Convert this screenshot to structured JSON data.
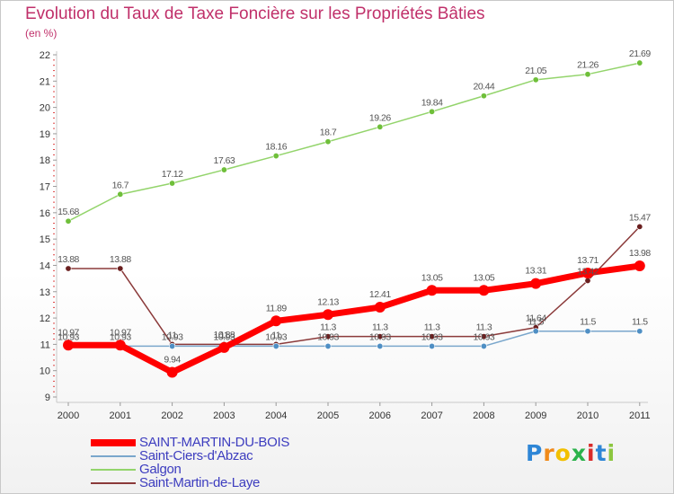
{
  "chart_data": {
    "type": "line",
    "title": "Evolution du Taux de Taxe Foncière sur les Propriétés Bâties",
    "ylabel": "(en %)",
    "xlabel": "",
    "x": [
      "2000",
      "2001",
      "2002",
      "2003",
      "2004",
      "2005",
      "2006",
      "2007",
      "2008",
      "2009",
      "2010",
      "2011"
    ],
    "yticks": [
      "9",
      "10",
      "11",
      "12",
      "13",
      "14",
      "15",
      "16",
      "17",
      "18",
      "19",
      "20",
      "21",
      "22"
    ],
    "ylim": [
      9,
      22
    ],
    "grid": false,
    "legend_position": "bottom-left",
    "series": [
      {
        "name": "Galgon",
        "color": "#93d46b",
        "marker_color": "#6fbf3a",
        "values": [
          15.68,
          16.7,
          17.12,
          17.63,
          18.16,
          18.7,
          19.26,
          19.84,
          20.44,
          21.05,
          21.26,
          21.69
        ],
        "labels": [
          "15.68",
          "16.7",
          "17.12",
          "17.63",
          "18.16",
          "18.7",
          "19.26",
          "19.84",
          "20.44",
          "21.05",
          "21.26",
          "21.69"
        ]
      },
      {
        "name": "Saint-Martin-de-Laye",
        "color": "#8b3a3a",
        "marker_color": "#6a1f1f",
        "values": [
          13.88,
          13.88,
          11.0,
          11.0,
          11.0,
          11.3,
          11.3,
          11.3,
          11.3,
          11.64,
          13.42,
          15.47
        ],
        "labels": [
          "13.88",
          "13.88",
          "11",
          "11",
          "11",
          "11.3",
          "11.3",
          "11.3",
          "11.3",
          "11.64",
          "13.42",
          "15.47"
        ]
      },
      {
        "name": "Saint-Ciers-d'Abzac",
        "color": "#7aa7cc",
        "marker_color": "#4f8fc4",
        "values": [
          10.93,
          10.93,
          10.93,
          10.93,
          10.93,
          10.93,
          10.93,
          10.93,
          10.93,
          11.5,
          11.5,
          11.5
        ],
        "labels": [
          "10.93",
          "10.93",
          "10.93",
          "10.93",
          "10.93",
          "10.93",
          "10.93",
          "10.93",
          "10.93",
          "11.5",
          "11.5",
          "11.5"
        ]
      },
      {
        "name": "SAINT-MARTIN-DU-BOIS",
        "color": "#ff0000",
        "marker_color": "#ff0000",
        "values": [
          10.97,
          10.97,
          9.94,
          10.88,
          11.89,
          12.13,
          12.41,
          13.05,
          13.05,
          13.31,
          13.71,
          13.98
        ],
        "labels": [
          "10.97",
          "10.97",
          "9.94",
          "10.88",
          "11.89",
          "12.13",
          "12.41",
          "13.05",
          "13.05",
          "13.31",
          "13.71",
          "13.98"
        ]
      }
    ],
    "legend": [
      "SAINT-MARTIN-DU-BOIS",
      "Saint-Ciers-d'Abzac",
      "Galgon",
      "Saint-Martin-de-Laye"
    ]
  },
  "brand": {
    "letters": [
      "P",
      "r",
      "o",
      "x",
      "i",
      "t",
      "i"
    ],
    "colors": [
      "#2e86d6",
      "#f08a1a",
      "#f2c000",
      "#2bb24c",
      "#d92b2b",
      "#2e86d6",
      "#8cc63f"
    ]
  }
}
